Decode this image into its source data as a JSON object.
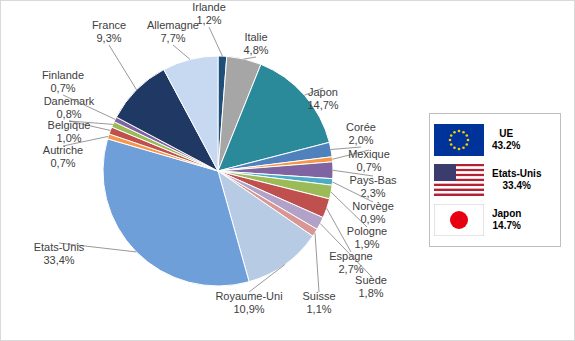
{
  "chart_data": {
    "type": "pie",
    "categories": [
      "Irlande",
      "Italie",
      "Japon",
      "Corée",
      "Mexique",
      "Pays-Bas",
      "Norvège",
      "Pologne",
      "Espagne",
      "Suède",
      "Suisse",
      "Royaume-Uni",
      "Etats-Unis",
      "Autriche",
      "Belgique",
      "Danemark",
      "Finlande",
      "France",
      "Allemagne"
    ],
    "values": [
      1.2,
      4.8,
      14.7,
      2.0,
      0.7,
      2.3,
      0.9,
      1.9,
      2.7,
      1.8,
      1.1,
      10.9,
      33.4,
      0.7,
      1.0,
      0.8,
      0.7,
      9.3,
      7.7
    ],
    "value_labels": [
      "1,2%",
      "4,8%",
      "14,7%",
      "2,0%",
      "0,7%",
      "2,3%",
      "0,9%",
      "1,9%",
      "2,7%",
      "1,8%",
      "1,1%",
      "10,9%",
      "33,4%",
      "0,7%",
      "1,0%",
      "0,8%",
      "0,7%",
      "9,3%",
      "7,7%"
    ],
    "colors": [
      "#1f4e79",
      "#a6a6a6",
      "#2a8a9a",
      "#4f81bd",
      "#f79646",
      "#8064a2",
      "#4bacc6",
      "#9bbb59",
      "#c0504d",
      "#b3a2c7",
      "#d99694",
      "#b7cce4",
      "#6f9fd8",
      "#f79646",
      "#c0504d",
      "#9bbb59",
      "#8064a2",
      "#1f3864",
      "#c6d9f1"
    ],
    "data_labels": true,
    "groups": [
      {
        "name": "UE",
        "label": "43.2%"
      },
      {
        "name": "Etats-Unis",
        "label": "33.4%"
      },
      {
        "name": "Japon",
        "label": "14.7%"
      }
    ]
  }
}
